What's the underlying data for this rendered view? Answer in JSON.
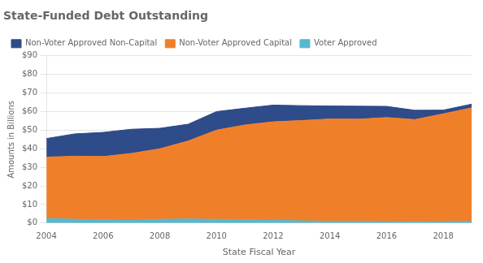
{
  "chart_data": {
    "type": "area",
    "title": "State-Funded Debt Outstanding",
    "xlabel": "State Fiscal Year",
    "ylabel": "Amounts in Billions",
    "x": [
      2004,
      2005,
      2006,
      2007,
      2008,
      2009,
      2010,
      2011,
      2012,
      2013,
      2014,
      2015,
      2016,
      2017,
      2018,
      2019
    ],
    "series": [
      {
        "name": "Voter Approved",
        "color": "#55b8d0",
        "values": [
          2.5,
          2.0,
          1.8,
          1.5,
          2.0,
          2.2,
          2.0,
          1.8,
          1.5,
          1.2,
          1.0,
          0.9,
          0.8,
          0.7,
          0.8,
          1.0
        ]
      },
      {
        "name": "Non-Voter Approved Capital",
        "color": "#f07f2a",
        "values": [
          33,
          34,
          34,
          36,
          38,
          42,
          48,
          51,
          53,
          54,
          55,
          55,
          56,
          55,
          58,
          61
        ]
      },
      {
        "name": "Non-Voter Approved Non-Capital",
        "color": "#2e4b8a",
        "values": [
          10,
          12,
          13,
          13,
          11,
          9,
          10,
          9,
          9,
          8,
          7,
          7,
          6,
          5,
          2,
          2
        ]
      }
    ],
    "stacked": true,
    "xlim": [
      2004,
      2019
    ],
    "xticks": [
      2004,
      2006,
      2008,
      2010,
      2012,
      2014,
      2016,
      2018
    ],
    "ylim": [
      0,
      90
    ],
    "yticks": [
      {
        "value": 0,
        "label": "$0"
      },
      {
        "value": 10,
        "label": "$10"
      },
      {
        "value": 20,
        "label": "$20"
      },
      {
        "value": 30,
        "label": "$30"
      },
      {
        "value": 40,
        "label": "$40"
      },
      {
        "value": 50,
        "label": "$50"
      },
      {
        "value": 60,
        "label": "$60"
      },
      {
        "value": 70,
        "label": "$70"
      },
      {
        "value": 80,
        "label": "$80"
      },
      {
        "value": 90,
        "label": "$90"
      }
    ],
    "grid": "y",
    "legend": "upper left"
  }
}
